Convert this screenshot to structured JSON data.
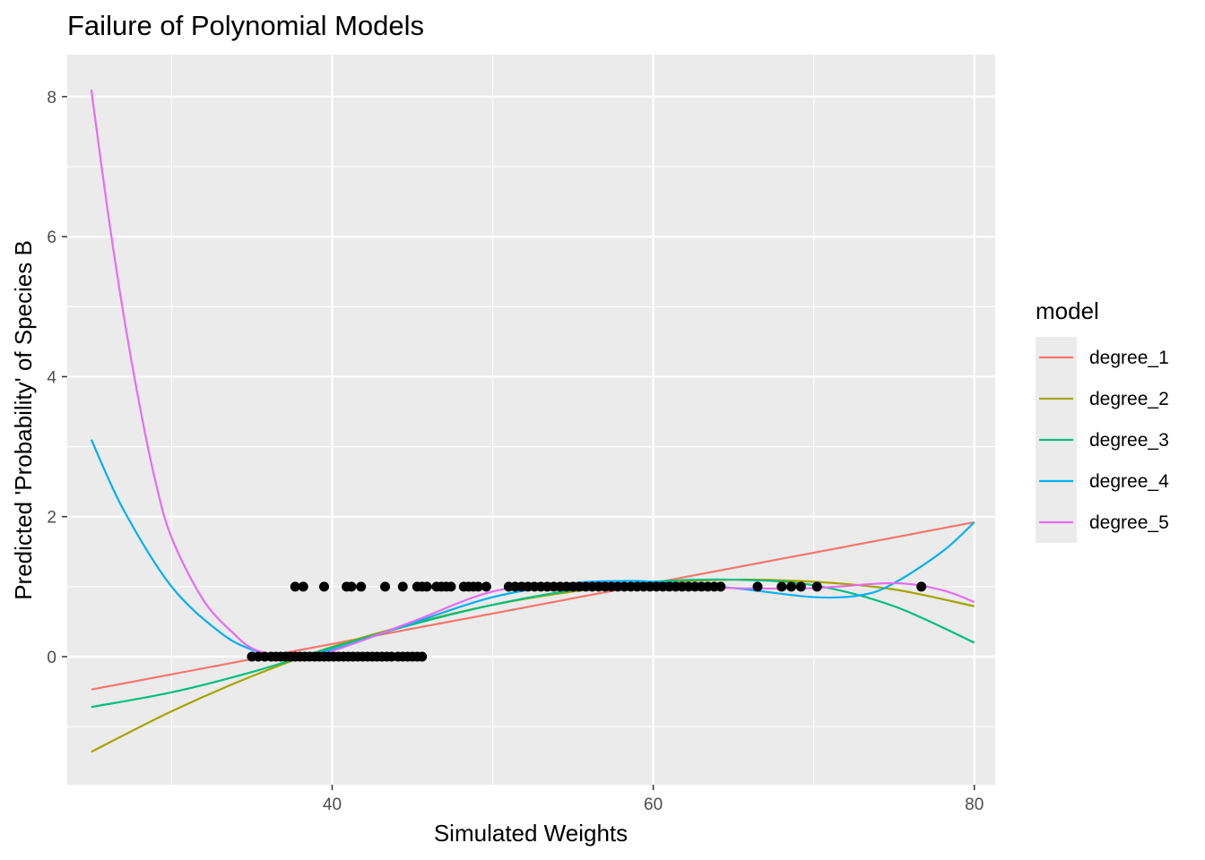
{
  "chart_data": {
    "type": "line",
    "title": "Failure of Polynomial Models",
    "xlabel": "Simulated Weights",
    "ylabel": "Predicted 'Probability' of Species B",
    "xlim": [
      23.5,
      81.3
    ],
    "ylim": [
      -1.83,
      8.6
    ],
    "x_ticks": [
      40,
      60,
      80
    ],
    "y_ticks": [
      0,
      2,
      4,
      6,
      8
    ],
    "x_minor_ticks": [
      30,
      50,
      70
    ],
    "y_minor_ticks": [
      -1,
      1,
      3,
      5,
      7
    ],
    "grid": true,
    "legend": {
      "title": "model",
      "position": "right"
    },
    "series": [
      {
        "name": "degree_1",
        "color": "#F8766D",
        "x": [
          25,
          80
        ],
        "y": [
          -0.47,
          1.92
        ]
      },
      {
        "name": "degree_2",
        "color": "#A3A500",
        "x": [
          25,
          30,
          35,
          40,
          45,
          50,
          55,
          60,
          65,
          70,
          75,
          80
        ],
        "y": [
          -1.36,
          -0.78,
          -0.28,
          0.14,
          0.47,
          0.74,
          0.93,
          1.05,
          1.1,
          1.07,
          0.96,
          0.72
        ]
      },
      {
        "name": "degree_3",
        "color": "#00BF7D",
        "x": [
          25,
          30,
          35,
          40,
          45,
          50,
          55,
          60,
          65,
          70,
          75,
          80
        ],
        "y": [
          -0.72,
          -0.51,
          -0.22,
          0.13,
          0.46,
          0.74,
          0.95,
          1.07,
          1.1,
          1.02,
          0.72,
          0.2
        ]
      },
      {
        "name": "degree_4",
        "color": "#00B0F6",
        "x": [
          25,
          27,
          30,
          33,
          35,
          37,
          40,
          45,
          50,
          55,
          58,
          60,
          65,
          70,
          73,
          75,
          78,
          80
        ],
        "y": [
          3.1,
          2.1,
          1.0,
          0.35,
          0.1,
          0.0,
          0.1,
          0.48,
          0.85,
          1.05,
          1.08,
          1.07,
          0.98,
          0.85,
          0.88,
          1.05,
          1.5,
          1.92
        ]
      },
      {
        "name": "degree_5",
        "color": "#E76BF3",
        "x": [
          25,
          26,
          27,
          28,
          29,
          30,
          32,
          34,
          35,
          36,
          37,
          38,
          40,
          45,
          50,
          55,
          60,
          65,
          70,
          75,
          78,
          80
        ],
        "y": [
          8.1,
          6.4,
          4.9,
          3.6,
          2.5,
          1.7,
          0.8,
          0.3,
          0.12,
          0.04,
          0.0,
          0.0,
          0.08,
          0.5,
          0.93,
          1.05,
          1.03,
          0.98,
          0.98,
          1.05,
          0.95,
          0.78
        ]
      }
    ],
    "points": {
      "color": "#000000",
      "x": [
        35.0,
        35.4,
        35.8,
        36.2,
        36.5,
        36.8,
        37.1,
        37.4,
        37.7,
        38.0,
        38.3,
        38.6,
        38.9,
        39.2,
        39.5,
        39.8,
        40.1,
        40.4,
        40.7,
        41.0,
        41.3,
        41.6,
        41.9,
        42.2,
        42.5,
        42.8,
        43.1,
        43.4,
        43.7,
        44.1,
        44.4,
        44.7,
        45.0,
        45.3,
        45.6,
        37.7,
        38.2,
        39.5,
        40.9,
        41.2,
        41.8,
        43.3,
        44.4,
        45.3,
        45.6,
        45.9,
        46.5,
        46.8,
        47.1,
        47.4,
        48.2,
        48.5,
        48.8,
        49.1,
        49.6,
        51.0,
        51.4,
        51.8,
        52.2,
        52.6,
        53.0,
        53.4,
        53.8,
        54.2,
        54.6,
        55.0,
        55.4,
        55.8,
        56.2,
        56.6,
        57.0,
        57.4,
        57.8,
        58.2,
        58.6,
        59.0,
        59.4,
        59.8,
        60.2,
        60.6,
        61.0,
        61.4,
        61.8,
        62.2,
        62.6,
        63.0,
        63.4,
        63.8,
        64.2,
        66.5,
        68.0,
        68.6,
        69.2,
        70.2,
        76.7
      ],
      "y": [
        0,
        0,
        0,
        0,
        0,
        0,
        0,
        0,
        0,
        0,
        0,
        0,
        0,
        0,
        0,
        0,
        0,
        0,
        0,
        0,
        0,
        0,
        0,
        0,
        0,
        0,
        0,
        0,
        0,
        0,
        0,
        0,
        0,
        0,
        0,
        1,
        1,
        1,
        1,
        1,
        1,
        1,
        1,
        1,
        1,
        1,
        1,
        1,
        1,
        1,
        1,
        1,
        1,
        1,
        1,
        1,
        1,
        1,
        1,
        1,
        1,
        1,
        1,
        1,
        1,
        1,
        1,
        1,
        1,
        1,
        1,
        1,
        1,
        1,
        1,
        1,
        1,
        1,
        1,
        1,
        1,
        1,
        1,
        1,
        1,
        1,
        1,
        1,
        1,
        1,
        1,
        1,
        1,
        1,
        1
      ]
    }
  }
}
